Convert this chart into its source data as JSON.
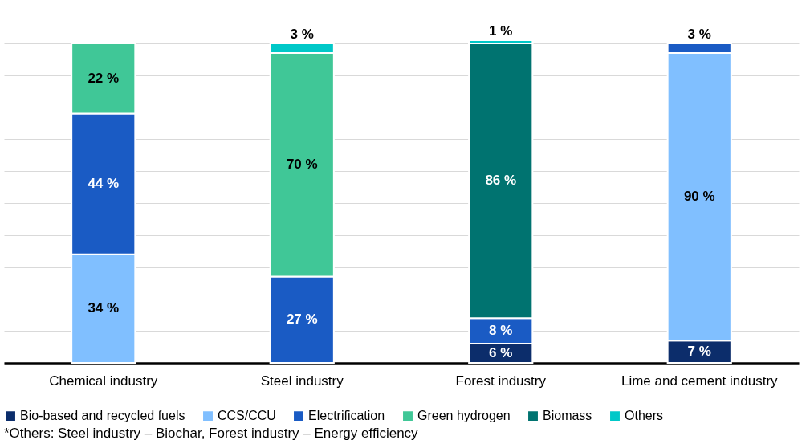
{
  "chart_data": {
    "type": "bar",
    "stacked": true,
    "categories": [
      "Chemical industry",
      "Steel industry",
      "Forest industry",
      "Lime and cement industry"
    ],
    "series": [
      {
        "name": "Bio-based and recycled fuels",
        "color": "#0c2d6b",
        "values": [
          null,
          null,
          6,
          7
        ],
        "value_labels": [
          null,
          null,
          "6 %",
          "7 %"
        ]
      },
      {
        "name": "CCS/CCU",
        "color": "#80bfff",
        "values": [
          34,
          null,
          null,
          90
        ],
        "value_labels": [
          "34 %",
          null,
          null,
          "90 %"
        ]
      },
      {
        "name": "Electrification",
        "color": "#1a5bc4",
        "values": [
          44,
          27,
          8,
          3
        ],
        "value_labels": [
          "44 %",
          "27 %",
          "8 %",
          "3 %"
        ]
      },
      {
        "name": "Green hydrogen",
        "color": "#40c797",
        "values": [
          22,
          70,
          null,
          null
        ],
        "value_labels": [
          "22 %",
          "70 %",
          null,
          null
        ]
      },
      {
        "name": "Biomass",
        "color": "#007370",
        "values": [
          null,
          null,
          86,
          null
        ],
        "value_labels": [
          null,
          null,
          "86 %",
          null
        ]
      },
      {
        "name": "Others",
        "color": "#00c8c8",
        "values": [
          null,
          3,
          1,
          null
        ],
        "value_labels": [
          null,
          "3 %",
          "1 %",
          null
        ]
      }
    ],
    "yticks": [
      {
        "value": 0,
        "label": null
      },
      {
        "value": 10,
        "label": null
      },
      {
        "value": 20,
        "label": null
      },
      {
        "value": 30,
        "label": null
      },
      {
        "value": 40,
        "label": null
      },
      {
        "value": 50,
        "label": null
      },
      {
        "value": 60,
        "label": null
      },
      {
        "value": 70,
        "label": null
      },
      {
        "value": 80,
        "label": null
      },
      {
        "value": 90,
        "label": null
      },
      {
        "value": 100,
        "label": null
      }
    ],
    "tick_labels": "x",
    "grid": "y",
    "legend": "bottom",
    "annotations": [
      "*Others: Steel industry – Biochar, Forest industry – Energy efficiency"
    ]
  }
}
